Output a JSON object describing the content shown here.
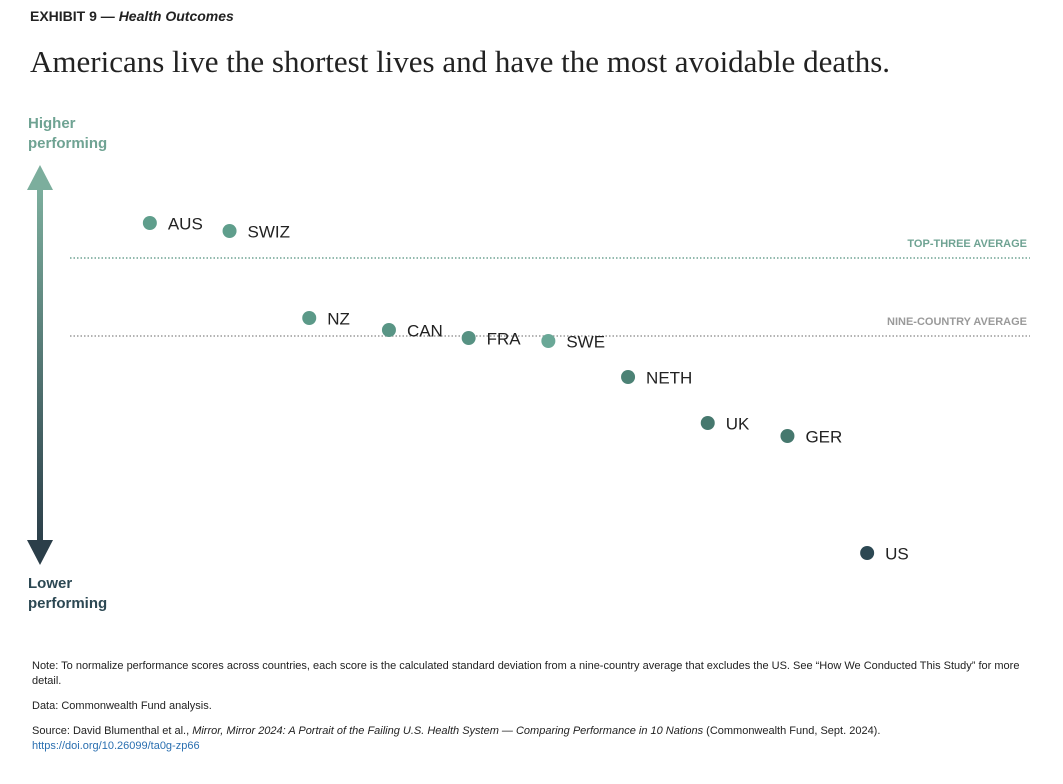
{
  "header": {
    "exhibit": "EXHIBIT 9 —",
    "subject": "Health Outcomes"
  },
  "chart_data": {
    "type": "dot",
    "title": "Americans live the shortest lives and have the most avoidable deaths.",
    "y_label_top": "Higher performing",
    "y_label_bottom": "Lower performing",
    "categories": [
      "AUS",
      "SWIZ",
      "NZ",
      "CAN",
      "FRA",
      "SWE",
      "NETH",
      "UK",
      "GER",
      "US"
    ],
    "values": [
      1.13,
      1.05,
      0.18,
      0.06,
      -0.02,
      -0.05,
      -0.41,
      -0.87,
      -1.0,
      -2.17
    ],
    "colors": [
      "#5f9e8c",
      "#5f9e8c",
      "#5b9988",
      "#599585",
      "#579283",
      "#6aa897",
      "#4c8275",
      "#46786e",
      "#46786e",
      "#2c4853"
    ],
    "ylim": [
      -2.5,
      1.5
    ],
    "reference_lines": [
      {
        "label": "TOP-THREE AVERAGE",
        "value": 0.78,
        "color": "#6fa393"
      },
      {
        "label": "NINE-COUNTRY AVERAGE",
        "value": 0,
        "color": "#9a9a9a"
      }
    ]
  },
  "footer": {
    "note": "Note: To normalize performance scores across countries, each score is the calculated standard deviation from a nine-country average that excludes the US. See “How We Conducted This Study” for more detail.",
    "data": "Data: Commonwealth Fund analysis.",
    "source_prefix": "Source: David Blumenthal et al., ",
    "source_title": "Mirror, Mirror 2024: A Portrait of the Failing U.S. Health System — Comparing Performance in 10 Nations",
    "source_suffix": " (Commonwealth Fund, Sept. 2024).",
    "link": "https://doi.org/10.26099/ta0g-zp66"
  }
}
